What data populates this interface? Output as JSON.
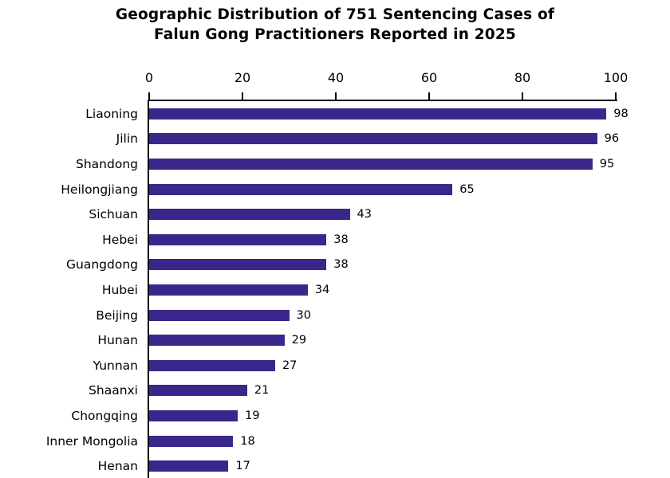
{
  "chart_data": {
    "type": "bar",
    "orientation": "horizontal",
    "title": "Geographic Distribution of 751 Sentencing Cases of Falun Gong Practitioners Reported in 2025",
    "title_lines": [
      "Geographic Distribution of 751 Sentencing Cases of",
      "Falun Gong Practitioners Reported in 2025"
    ],
    "categories": [
      "Liaoning",
      "Jilin",
      "Shandong",
      "Heilongjiang",
      "Sichuan",
      "Hebei",
      "Guangdong",
      "Hubei",
      "Beijing",
      "Hunan",
      "Yunnan",
      "Shaanxi",
      "Chongqing",
      "Inner Mongolia",
      "Henan"
    ],
    "values": [
      98,
      96,
      95,
      65,
      43,
      38,
      38,
      34,
      30,
      29,
      27,
      21,
      19,
      18,
      17
    ],
    "x_ticks": [
      0,
      20,
      40,
      60,
      80,
      100
    ],
    "xlim": [
      0,
      100
    ],
    "xlabel": "",
    "ylabel": "",
    "grid": false,
    "legend": false,
    "bar_color": "#3B278C",
    "axis_color": "#000000",
    "background_color": "#FFFFFF"
  }
}
